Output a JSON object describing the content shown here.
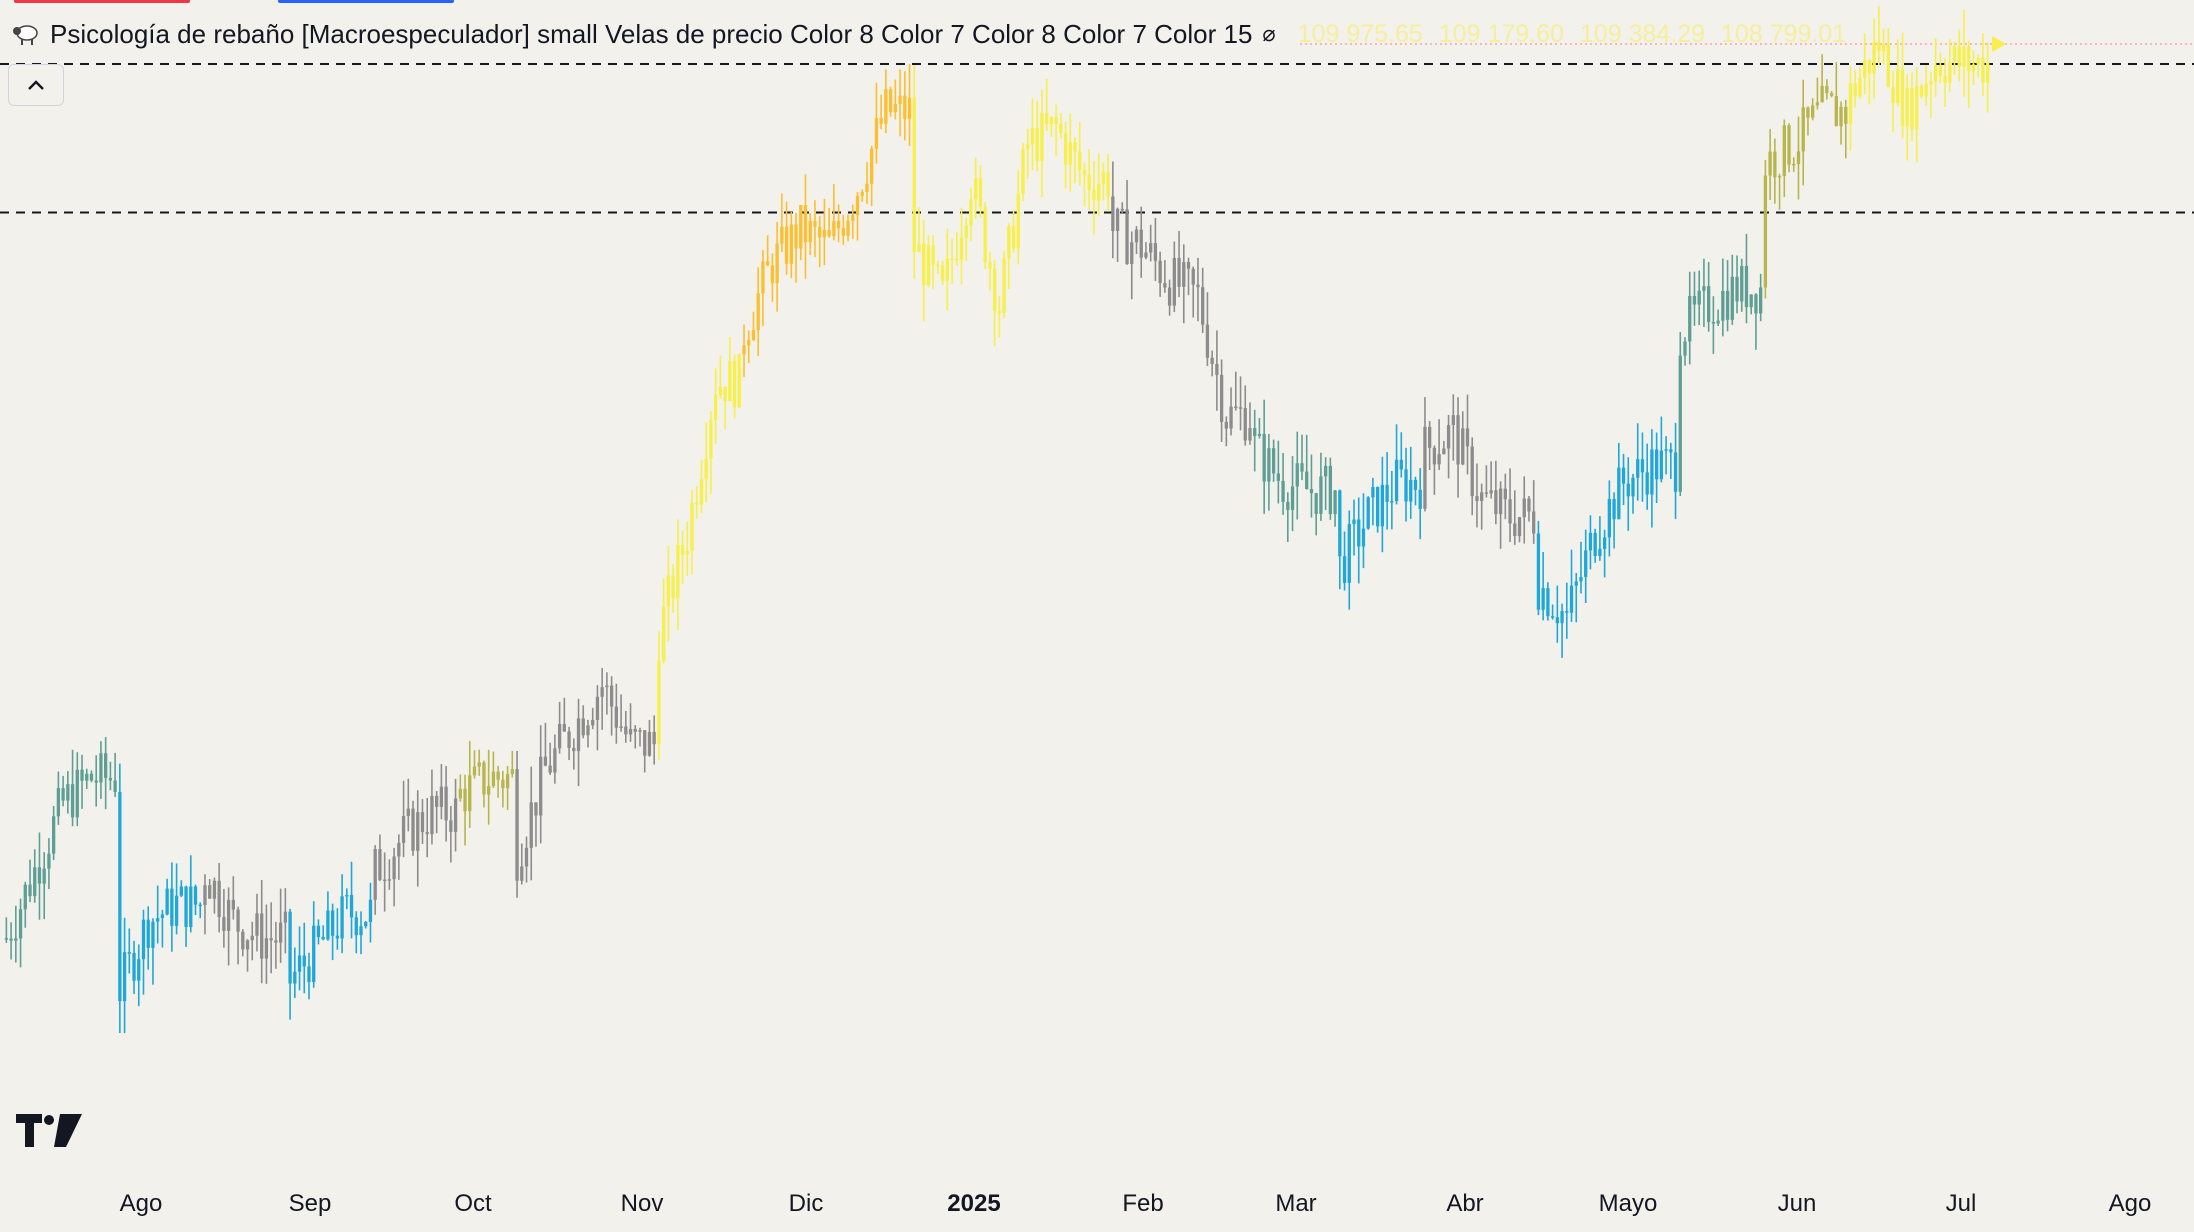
{
  "legend": {
    "title": "Psicología de rebaño [Macroespeculador] small Velas de precio Color 8 Color 7 Color 8 Color 7 Color 15",
    "values": [
      "109 975.65",
      "109 179.60",
      "109 384.29",
      "108 799.01"
    ],
    "icon": "sheep-icon",
    "hide_icon": "eye-off-icon"
  },
  "colors": {
    "background": "#f2f1ec",
    "gray": "#8c8c8c",
    "teal": "#5f9e94",
    "blue": "#1ea7d8",
    "olive": "#b7b54b",
    "yellow": "#f7f04a",
    "orange": "#fbbf2f",
    "hline": "#131722",
    "lastprice_line": "#f7a6a6"
  },
  "chart_data": {
    "type": "candlestick",
    "title": "",
    "x_ticks": [
      "Ago",
      "Sep",
      "Oct",
      "Nov",
      "Dic",
      "2025",
      "Feb",
      "Mar",
      "Abr",
      "Mayo",
      "Jun",
      "Jul",
      "Ago"
    ],
    "x_tick_bold": [
      false,
      false,
      false,
      false,
      false,
      true,
      false,
      false,
      false,
      false,
      false,
      false,
      false
    ],
    "approx_ylim": [
      48000,
      112000
    ],
    "horizontal_levels": [
      108800,
      100000
    ],
    "last_price": 108799.01,
    "series_segments": [
      {
        "from_month": "Jul 2024",
        "to_month": "Ago 2024",
        "color_role": "teal",
        "approx_close": [
          57000,
          61000,
          65000,
          66500
        ]
      },
      {
        "from_month": "Ago 2024",
        "to_month": "Ago 2024",
        "color_role": "blue",
        "approx_close": [
          54000,
          58000,
          59000
        ]
      },
      {
        "from_month": "Ago 2024",
        "to_month": "Sep 2024",
        "color_role": "gray",
        "approx_close": [
          61000,
          58000,
          57000
        ]
      },
      {
        "from_month": "Sep 2024",
        "to_month": "Sep 2024",
        "color_role": "blue",
        "approx_close": [
          54500,
          56500,
          58500
        ]
      },
      {
        "from_month": "Sep 2024",
        "to_month": "Oct 2024",
        "color_role": "gray",
        "approx_close": [
          61000,
          63000,
          64500
        ]
      },
      {
        "from_month": "Oct 2024",
        "to_month": "Oct 2024",
        "color_role": "olive",
        "approx_close": [
          65500,
          66500
        ]
      },
      {
        "from_month": "Oct 2024",
        "to_month": "Nov 2024",
        "color_role": "gray",
        "approx_close": [
          62000,
          67000,
          69500,
          72000,
          68500
        ]
      },
      {
        "from_month": "Nov 2024",
        "to_month": "Nov 2024",
        "color_role": "yellow",
        "approx_close": [
          75000,
          81000,
          90000
        ]
      },
      {
        "from_month": "Nov 2024",
        "to_month": "Dic 2024",
        "color_role": "orange",
        "approx_close": [
          93000,
          97000,
          99000,
          98000,
          101500,
          106000
        ]
      },
      {
        "from_month": "Dic 2024",
        "to_month": "Ene 2025",
        "color_role": "yellow",
        "approx_close": [
          98000,
          95000,
          102000,
          94500,
          104000,
          105000,
          102000
        ]
      },
      {
        "from_month": "Ene 2025",
        "to_month": "Feb 2025",
        "color_role": "gray",
        "approx_close": [
          99000,
          98000,
          96000,
          95000,
          88000
        ]
      },
      {
        "from_month": "Feb 2025",
        "to_month": "Mar 2025",
        "color_role": "teal",
        "approx_close": [
          86000,
          84000,
          83500
        ]
      },
      {
        "from_month": "Mar 2025",
        "to_month": "Mar 2025",
        "color_role": "blue",
        "approx_close": [
          79000,
          82000,
          84000
        ]
      },
      {
        "from_month": "Mar 2025",
        "to_month": "Abr 2025",
        "color_role": "gray",
        "approx_close": [
          86000,
          87000,
          83000,
          82000
        ]
      },
      {
        "from_month": "Abr 2025",
        "to_month": "Abr 2025",
        "color_role": "blue",
        "approx_close": [
          78000,
          76000,
          81000,
          84000,
          85000
        ]
      },
      {
        "from_month": "Abr 2025",
        "to_month": "Mayo 2025",
        "color_role": "teal",
        "approx_close": [
          93000,
          94500,
          95500
        ]
      },
      {
        "from_month": "Mayo 2025",
        "to_month": "Jun 2025",
        "color_role": "olive",
        "approx_close": [
          103000,
          104000,
          106000
        ]
      },
      {
        "from_month": "Jun 2025",
        "to_month": "Jul 2025",
        "color_role": "yellow",
        "approx_close": [
          107000,
          110000,
          106000,
          109000,
          108800
        ]
      }
    ]
  }
}
